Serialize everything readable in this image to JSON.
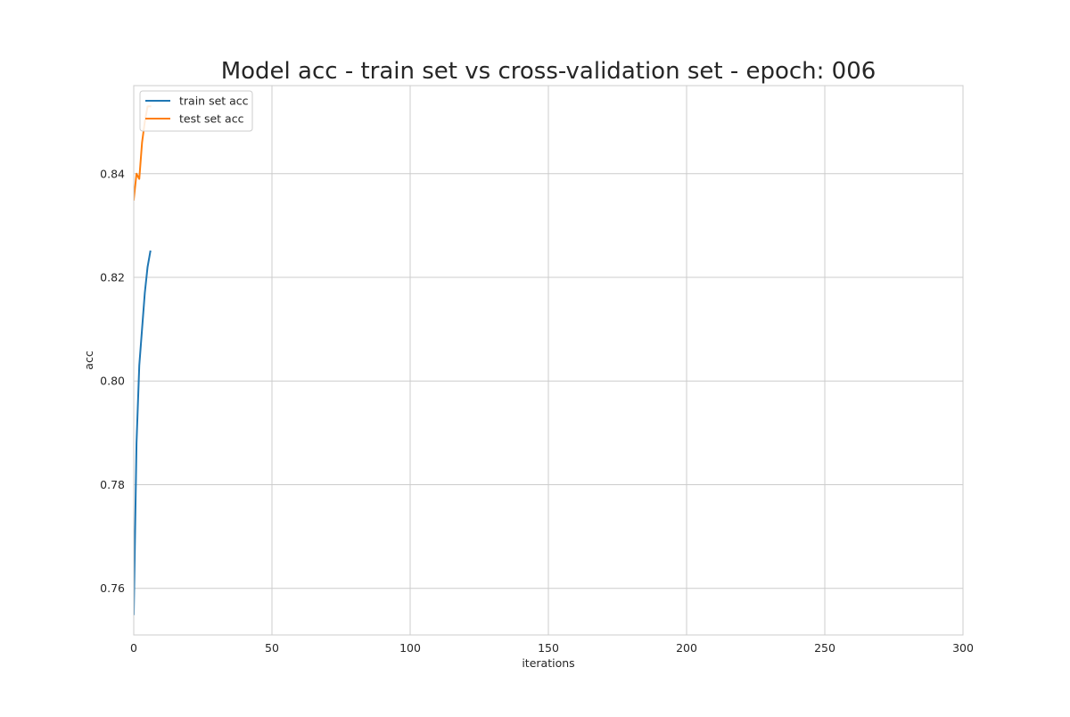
{
  "chart_data": {
    "type": "line",
    "title": "Model acc - train set vs cross-validation set - epoch: 006",
    "xlabel": "iterations",
    "ylabel": "acc",
    "xlim": [
      0,
      300
    ],
    "ylim": [
      0.751,
      0.857
    ],
    "xticks": [
      0,
      50,
      100,
      150,
      200,
      250,
      300
    ],
    "yticks": [
      0.76,
      0.78,
      0.8,
      0.82,
      0.84
    ],
    "ytick_labels": [
      "0.76",
      "0.78",
      "0.80",
      "0.82",
      "0.84"
    ],
    "grid": true,
    "legend_position": "top-left",
    "series": [
      {
        "name": "train set acc",
        "color": "#1f77b4",
        "x": [
          0,
          1,
          2,
          3,
          4,
          5,
          6
        ],
        "y": [
          0.755,
          0.788,
          0.803,
          0.81,
          0.817,
          0.822,
          0.825
        ]
      },
      {
        "name": "test set acc",
        "color": "#ff7f0e",
        "x": [
          0,
          1,
          2,
          3,
          4,
          5,
          6
        ],
        "y": [
          0.835,
          0.84,
          0.839,
          0.846,
          0.85,
          0.853,
          0.853
        ]
      }
    ]
  }
}
